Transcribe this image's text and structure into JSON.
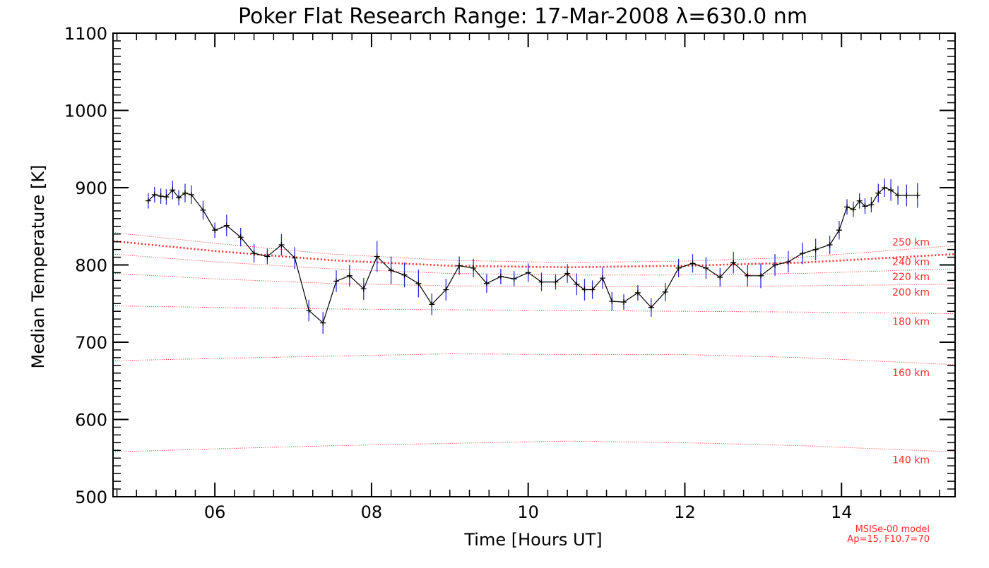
{
  "chart_data": {
    "type": "line",
    "title": "Poker Flat Research Range: 17-Mar-2008 λ=630.0 nm",
    "xlabel": "Time [Hours UT]",
    "ylabel": "Median Temperature [K]",
    "xlim": [
      4.7,
      15.45
    ],
    "ylim": [
      500,
      1100
    ],
    "x_ticks": [
      6,
      8,
      10,
      12,
      14
    ],
    "x_tick_labels": [
      "06",
      "08",
      "10",
      "12",
      "14"
    ],
    "y_ticks": [
      500,
      600,
      700,
      800,
      900,
      1000,
      1100
    ],
    "y_tick_labels": [
      "500",
      "600",
      "700",
      "800",
      "900",
      "1000",
      "1100"
    ],
    "grid": false,
    "colors": {
      "observed_line": "#000000",
      "error_bars": "#2a2adb",
      "model": "#ff2b2b",
      "axes": "#000000"
    },
    "series": [
      {
        "kind": "observed",
        "x": [
          5.15,
          5.23,
          5.31,
          5.38,
          5.46,
          5.54,
          5.62,
          5.7,
          5.85,
          6.0,
          6.15,
          6.33,
          6.5,
          6.67,
          6.85,
          7.02,
          7.2,
          7.38,
          7.55,
          7.72,
          7.9,
          8.07,
          8.25,
          8.42,
          8.6,
          8.77,
          8.95,
          9.12,
          9.3,
          9.47,
          9.65,
          9.82,
          10.0,
          10.17,
          10.35,
          10.5,
          10.62,
          10.72,
          10.82,
          10.95,
          11.07,
          11.22,
          11.4,
          11.57,
          11.75,
          11.92,
          12.1,
          12.27,
          12.45,
          12.62,
          12.8,
          12.97,
          13.15,
          13.32,
          13.5,
          13.67,
          13.85,
          13.97,
          14.07,
          14.15,
          14.23,
          14.3,
          14.38,
          14.47,
          14.55,
          14.63,
          14.72,
          14.83,
          14.97
        ],
        "y": [
          883,
          891,
          889,
          888,
          897,
          887,
          893,
          891,
          871,
          845,
          851,
          836,
          815,
          811,
          826,
          809,
          741,
          725,
          779,
          786,
          769,
          811,
          793,
          787,
          776,
          749,
          768,
          799,
          796,
          776,
          785,
          782,
          790,
          778,
          778,
          789,
          775,
          768,
          768,
          783,
          753,
          752,
          764,
          745,
          765,
          796,
          802,
          796,
          784,
          803,
          786,
          786,
          800,
          804,
          815,
          820,
          826,
          845,
          875,
          872,
          883,
          876,
          878,
          893,
          900,
          897,
          890,
          890,
          890
        ],
        "error": [
          10,
          10,
          10,
          10,
          12,
          10,
          12,
          12,
          12,
          10,
          14,
          12,
          12,
          10,
          14,
          14,
          14,
          14,
          14,
          14,
          14,
          20,
          18,
          16,
          18,
          14,
          14,
          12,
          12,
          12,
          10,
          10,
          12,
          12,
          10,
          12,
          14,
          14,
          12,
          14,
          12,
          10,
          10,
          12,
          12,
          12,
          12,
          14,
          12,
          14,
          14,
          16,
          14,
          14,
          14,
          14,
          12,
          12,
          10,
          10,
          10,
          10,
          10,
          12,
          12,
          14,
          12,
          14,
          16
        ]
      },
      {
        "kind": "model",
        "label": "140 km",
        "thin": true,
        "x": [
          4.7,
          6.0,
          7.5,
          9.0,
          10.5,
          12.0,
          13.5,
          15.45
        ],
        "y": [
          558,
          562,
          566,
          569,
          572,
          570,
          566,
          558
        ]
      },
      {
        "kind": "model",
        "label": "160 km",
        "thin": true,
        "x": [
          4.7,
          6.0,
          7.5,
          9.0,
          10.5,
          12.0,
          13.5,
          15.45
        ],
        "y": [
          676,
          679,
          682,
          685,
          684,
          684,
          680,
          671
        ]
      },
      {
        "kind": "model",
        "label": "180 km",
        "thin": true,
        "x": [
          4.7,
          6.0,
          7.5,
          9.0,
          10.5,
          12.0,
          13.5,
          15.45
        ],
        "y": [
          747,
          745,
          743,
          742,
          741,
          740,
          739,
          737
        ]
      },
      {
        "kind": "model",
        "label": "200 km",
        "thin": true,
        "x": [
          4.7,
          6.0,
          7.5,
          9.0,
          10.5,
          12.0,
          13.5,
          15.45
        ],
        "y": [
          789,
          782,
          776,
          773,
          772,
          772,
          773,
          775
        ]
      },
      {
        "kind": "model",
        "label": "220 km",
        "thin": true,
        "x": [
          4.7,
          6.0,
          7.5,
          9.0,
          10.5,
          12.0,
          13.5,
          15.45
        ],
        "y": [
          814,
          804,
          795,
          789,
          787,
          787,
          789,
          795
        ]
      },
      {
        "kind": "model",
        "label": "240 km",
        "thin": false,
        "x": [
          4.7,
          6.0,
          7.5,
          9.0,
          10.5,
          12.0,
          13.5,
          15.45
        ],
        "y": [
          831,
          818,
          806,
          799,
          797,
          799,
          803,
          814
        ]
      },
      {
        "kind": "model",
        "label": "250 km",
        "thin": true,
        "x": [
          4.7,
          6.0,
          7.5,
          9.0,
          10.5,
          12.0,
          13.5,
          15.45
        ],
        "y": [
          842,
          828,
          814,
          806,
          803,
          805,
          810,
          825
        ]
      }
    ],
    "model_footer": [
      "MSISe-00 model",
      "Ap=15, F10.7=70"
    ]
  }
}
